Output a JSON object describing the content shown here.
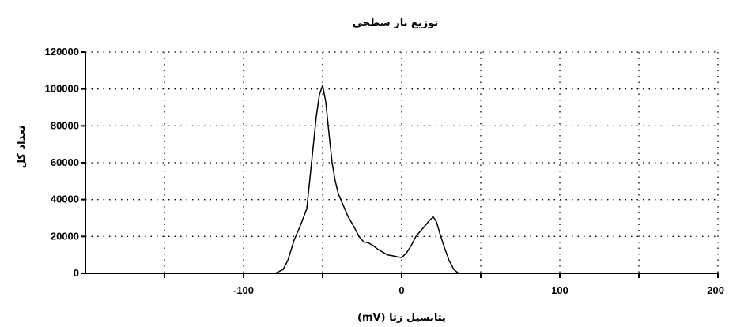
{
  "chart_data": {
    "type": "line",
    "title": "توزیع بار سطحی",
    "xlabel": "پتانسیل زتا (mV)",
    "ylabel": "تعداد کل",
    "xlim": [
      -200,
      200
    ],
    "ylim": [
      0,
      120000
    ],
    "x_ticks": [
      -150,
      -100,
      -50,
      0,
      50,
      100,
      150,
      200
    ],
    "x_tick_labels": [
      "-100",
      "0",
      "100",
      "200"
    ],
    "x_tick_label_values": [
      -100,
      0,
      100,
      200
    ],
    "y_ticks": [
      0,
      20000,
      40000,
      60000,
      80000,
      100000,
      120000
    ],
    "y_tick_labels": [
      "0",
      "20000",
      "40000",
      "60000",
      "80000",
      "100000",
      "120000"
    ],
    "grid": true,
    "series": [
      {
        "x": [
          -80,
          -75,
          -72,
          -68,
          -64,
          -60,
          -57,
          -54,
          -52,
          -50,
          -48,
          -46,
          -44,
          -42,
          -40,
          -37,
          -34,
          -30,
          -27,
          -24,
          -21,
          -18,
          -15,
          -12,
          -9,
          -6,
          -3,
          0,
          3,
          6,
          9,
          12,
          15,
          18,
          20,
          22,
          24,
          27,
          30,
          33,
          36
        ],
        "y": [
          0,
          2000,
          7000,
          18000,
          26000,
          35000,
          60000,
          85000,
          97000,
          102000,
          93000,
          76000,
          60000,
          50000,
          43000,
          37000,
          31000,
          25000,
          20000,
          17000,
          16500,
          15000,
          13000,
          11500,
          10000,
          9500,
          9000,
          8500,
          11000,
          15000,
          20000,
          23000,
          26000,
          29000,
          30500,
          28000,
          22000,
          14000,
          7000,
          2000,
          0
        ]
      }
    ]
  }
}
